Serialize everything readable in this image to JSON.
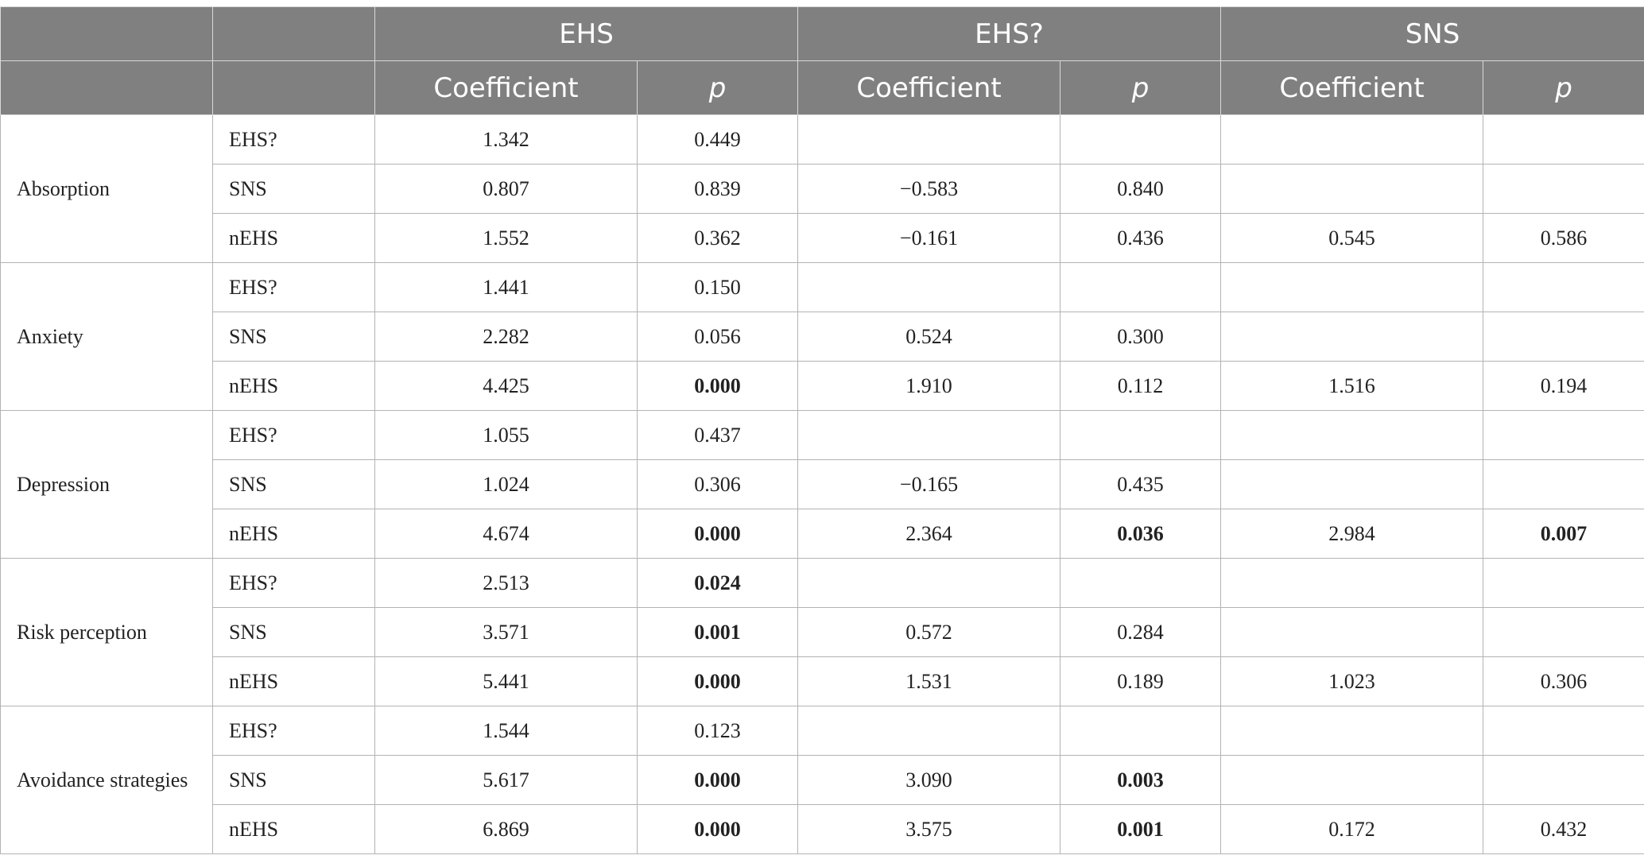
{
  "header": {
    "groups": [
      "EHS",
      "EHS?",
      "SNS"
    ],
    "coef_label": "Coefficient",
    "p_label": "p"
  },
  "groups": [
    {
      "label": "Absorption",
      "rows": [
        {
          "name": "EHS?",
          "cells": [
            {
              "v": "1.342",
              "b": false
            },
            {
              "v": "0.449",
              "b": false
            },
            {
              "v": "",
              "b": false
            },
            {
              "v": "",
              "b": false
            },
            {
              "v": "",
              "b": false
            },
            {
              "v": "",
              "b": false
            }
          ]
        },
        {
          "name": "SNS",
          "cells": [
            {
              "v": "0.807",
              "b": false
            },
            {
              "v": "0.839",
              "b": false
            },
            {
              "v": "−0.583",
              "b": false
            },
            {
              "v": "0.840",
              "b": false
            },
            {
              "v": "",
              "b": false
            },
            {
              "v": "",
              "b": false
            }
          ]
        },
        {
          "name": "nEHS",
          "cells": [
            {
              "v": "1.552",
              "b": false
            },
            {
              "v": "0.362",
              "b": false
            },
            {
              "v": "−0.161",
              "b": false
            },
            {
              "v": "0.436",
              "b": false
            },
            {
              "v": "0.545",
              "b": false
            },
            {
              "v": "0.586",
              "b": false
            }
          ]
        }
      ]
    },
    {
      "label": "Anxiety",
      "rows": [
        {
          "name": "EHS?",
          "cells": [
            {
              "v": "1.441",
              "b": false
            },
            {
              "v": "0.150",
              "b": false
            },
            {
              "v": "",
              "b": false
            },
            {
              "v": "",
              "b": false
            },
            {
              "v": "",
              "b": false
            },
            {
              "v": "",
              "b": false
            }
          ]
        },
        {
          "name": "SNS",
          "cells": [
            {
              "v": "2.282",
              "b": false
            },
            {
              "v": "0.056",
              "b": false
            },
            {
              "v": "0.524",
              "b": false
            },
            {
              "v": "0.300",
              "b": false
            },
            {
              "v": "",
              "b": false
            },
            {
              "v": "",
              "b": false
            }
          ]
        },
        {
          "name": "nEHS",
          "cells": [
            {
              "v": "4.425",
              "b": false
            },
            {
              "v": "0.000",
              "b": true
            },
            {
              "v": "1.910",
              "b": false
            },
            {
              "v": "0.112",
              "b": false
            },
            {
              "v": "1.516",
              "b": false
            },
            {
              "v": "0.194",
              "b": false
            }
          ]
        }
      ]
    },
    {
      "label": "Depression",
      "rows": [
        {
          "name": "EHS?",
          "cells": [
            {
              "v": "1.055",
              "b": false
            },
            {
              "v": "0.437",
              "b": false
            },
            {
              "v": "",
              "b": false
            },
            {
              "v": "",
              "b": false
            },
            {
              "v": "",
              "b": false
            },
            {
              "v": "",
              "b": false
            }
          ]
        },
        {
          "name": "SNS",
          "cells": [
            {
              "v": "1.024",
              "b": false
            },
            {
              "v": "0.306",
              "b": false
            },
            {
              "v": "−0.165",
              "b": false
            },
            {
              "v": "0.435",
              "b": false
            },
            {
              "v": "",
              "b": false
            },
            {
              "v": "",
              "b": false
            }
          ]
        },
        {
          "name": "nEHS",
          "cells": [
            {
              "v": "4.674",
              "b": false
            },
            {
              "v": "0.000",
              "b": true
            },
            {
              "v": "2.364",
              "b": false
            },
            {
              "v": "0.036",
              "b": true
            },
            {
              "v": "2.984",
              "b": false
            },
            {
              "v": "0.007",
              "b": true
            }
          ]
        }
      ]
    },
    {
      "label": "Risk perception",
      "rows": [
        {
          "name": "EHS?",
          "cells": [
            {
              "v": "2.513",
              "b": false
            },
            {
              "v": "0.024",
              "b": true
            },
            {
              "v": "",
              "b": false
            },
            {
              "v": "",
              "b": false
            },
            {
              "v": "",
              "b": false
            },
            {
              "v": "",
              "b": false
            }
          ]
        },
        {
          "name": "SNS",
          "cells": [
            {
              "v": "3.571",
              "b": false
            },
            {
              "v": "0.001",
              "b": true
            },
            {
              "v": "0.572",
              "b": false
            },
            {
              "v": "0.284",
              "b": false
            },
            {
              "v": "",
              "b": false
            },
            {
              "v": "",
              "b": false
            }
          ]
        },
        {
          "name": "nEHS",
          "cells": [
            {
              "v": "5.441",
              "b": false
            },
            {
              "v": "0.000",
              "b": true
            },
            {
              "v": "1.531",
              "b": false
            },
            {
              "v": "0.189",
              "b": false
            },
            {
              "v": "1.023",
              "b": false
            },
            {
              "v": "0.306",
              "b": false
            }
          ]
        }
      ]
    },
    {
      "label": "Avoidance strategies",
      "rows": [
        {
          "name": "EHS?",
          "cells": [
            {
              "v": "1.544",
              "b": false
            },
            {
              "v": "0.123",
              "b": false
            },
            {
              "v": "",
              "b": false
            },
            {
              "v": "",
              "b": false
            },
            {
              "v": "",
              "b": false
            },
            {
              "v": "",
              "b": false
            }
          ]
        },
        {
          "name": "SNS",
          "cells": [
            {
              "v": "5.617",
              "b": false
            },
            {
              "v": "0.000",
              "b": true
            },
            {
              "v": "3.090",
              "b": false
            },
            {
              "v": "0.003",
              "b": true
            },
            {
              "v": "",
              "b": false
            },
            {
              "v": "",
              "b": false
            }
          ]
        },
        {
          "name": "nEHS",
          "cells": [
            {
              "v": "6.869",
              "b": false
            },
            {
              "v": "0.000",
              "b": true
            },
            {
              "v": "3.575",
              "b": false
            },
            {
              "v": "0.001",
              "b": true
            },
            {
              "v": "0.172",
              "b": false
            },
            {
              "v": "0.432",
              "b": false
            }
          ]
        }
      ]
    }
  ]
}
